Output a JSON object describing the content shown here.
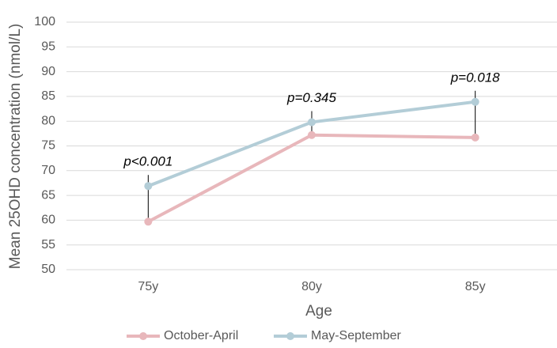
{
  "chart_data": {
    "type": "line",
    "x_label": "Age",
    "y_label": "Mean 25OHD concentration (nmol/L)",
    "categories": [
      "75y",
      "80y",
      "85y"
    ],
    "series": [
      {
        "name": "October-April",
        "color": "#e8b7bb",
        "values": [
          59.7,
          77.2,
          76.7
        ]
      },
      {
        "name": "May-September",
        "color": "#b3cdd7",
        "values": [
          66.9,
          79.8,
          83.9
        ]
      }
    ],
    "annotations": [
      "p<0.001",
      "p=0.345",
      "p=0.018"
    ],
    "ylim": [
      50,
      100
    ],
    "yticks": [
      50,
      55,
      60,
      65,
      70,
      75,
      80,
      85,
      90,
      95,
      100
    ],
    "grid": true,
    "legend": "bottom"
  }
}
